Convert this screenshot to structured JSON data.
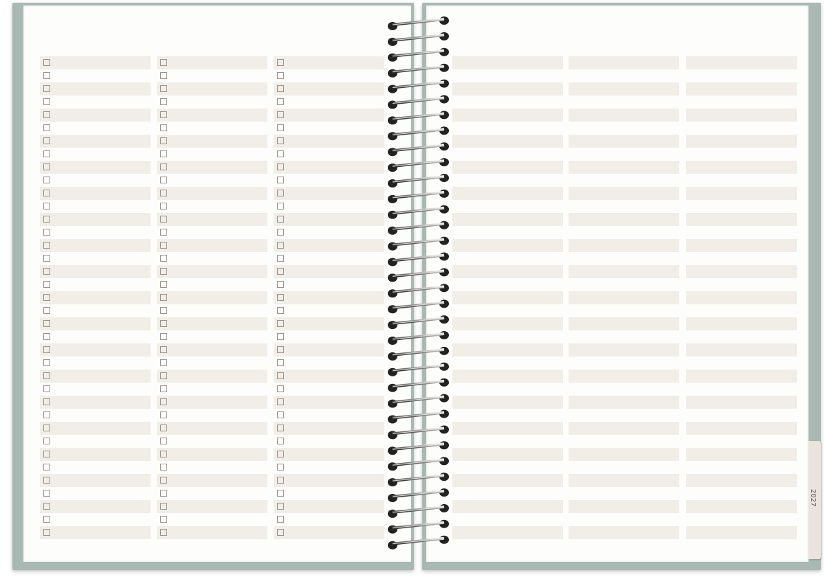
{
  "planner": {
    "row_count": 37,
    "left_columns": 3,
    "right_columns": 3,
    "left_has_checkboxes": true,
    "ring_count": 34,
    "colors": {
      "cover": "#a9b8b3",
      "row_shade": "#f1ede7",
      "page": "#fdfdfc",
      "tab": "#ebe4dc"
    }
  },
  "tab": {
    "year": "2027"
  }
}
